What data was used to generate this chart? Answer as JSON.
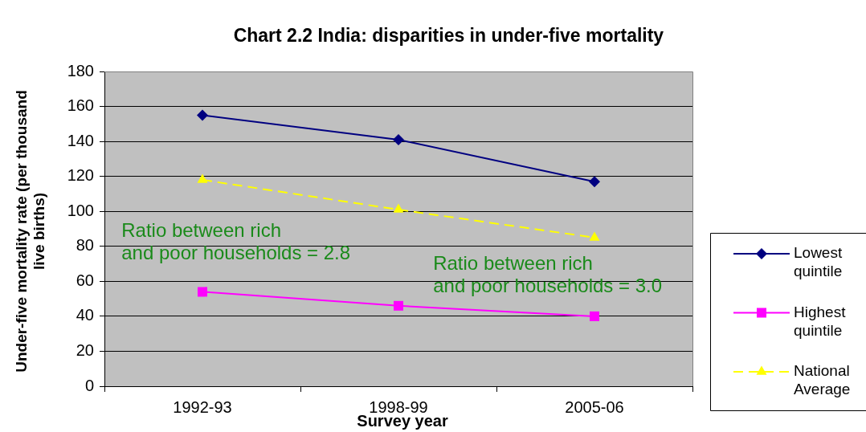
{
  "chart_data": {
    "type": "line",
    "title": "Chart 2.2 India: disparities in under-five mortality",
    "xlabel": "Survey year",
    "ylabel": "Under-five mortality rate (per thousand live births)",
    "categories": [
      "1992-93",
      "1998-99",
      "2005-06"
    ],
    "series": [
      {
        "name": "Lowest quintile",
        "color": "#000080",
        "values": [
          155,
          141,
          117
        ],
        "marker": "diamond",
        "line_style": "solid"
      },
      {
        "name": "Highest quintile",
        "color": "#ff00ff",
        "values": [
          54,
          46,
          40
        ],
        "marker": "square",
        "line_style": "solid"
      },
      {
        "name": "National Average",
        "color": "#ffff00",
        "values": [
          118,
          101,
          85
        ],
        "marker": "triangle",
        "line_style": "dashed"
      }
    ],
    "ylim": [
      0,
      180
    ],
    "yticks": [
      0,
      20,
      40,
      60,
      80,
      100,
      120,
      140,
      160,
      180
    ],
    "grid": "y",
    "legend": "right",
    "annotations": [
      "Ratio between rich\nand poor households = 2.8",
      "Ratio between rich\nand poor households = 3.0"
    ]
  }
}
